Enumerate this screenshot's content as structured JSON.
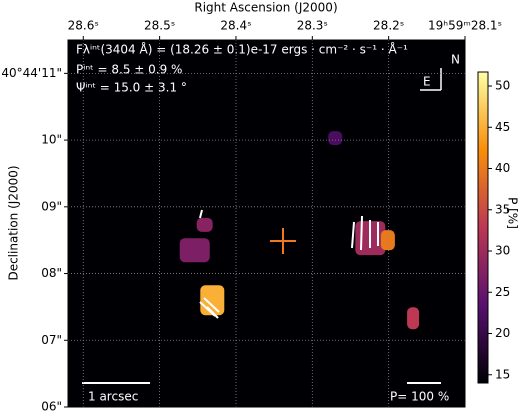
{
  "chart_data": {
    "type": "polarization-map",
    "title_lines": [
      "Fλⁱⁿᵗ(3404 Å) = (18.26 ± 0.1)e-17 ergs · cm⁻² · s⁻¹ · Å⁻¹",
      "Pⁱⁿᵗ = 8.5 ± 0.9 %",
      "Ψⁱⁿᵗ = 15.0 ± 3.1 °"
    ],
    "xlabel": "Right Ascension (J2000)",
    "ylabel": "Declination (J2000)",
    "xlim": [
      28.62,
      28.1
    ],
    "ylim": [
      6,
      11.5
    ],
    "xticks": [
      {
        "value": 28.6,
        "label": "28.6ˢ"
      },
      {
        "value": 28.5,
        "label": "28.5ˢ"
      },
      {
        "value": 28.4,
        "label": "28.4ˢ"
      },
      {
        "value": 28.3,
        "label": "28.3ˢ"
      },
      {
        "value": 28.2,
        "label": "28.2ˢ"
      },
      {
        "value": 28.1,
        "label": "19ʰ59ᵐ28.1ˢ"
      }
    ],
    "yticks": [
      {
        "value": 11,
        "label": "40°44'11\""
      },
      {
        "value": 10,
        "label": "10\""
      },
      {
        "value": 9,
        "label": "09\""
      },
      {
        "value": 8,
        "label": "08\""
      },
      {
        "value": 7,
        "label": "07\""
      },
      {
        "value": 6,
        "label": "06\""
      }
    ],
    "grid": true,
    "colorbar": {
      "label": "P [%]",
      "lim": [
        14,
        51.7
      ],
      "ticks": [
        15,
        20,
        25,
        30,
        35,
        40,
        45,
        50
      ],
      "colormap": "inferno"
    },
    "sources": {
      "x": [
        28.441,
        28.454,
        28.431,
        28.224,
        28.201,
        28.168,
        28.27
      ],
      "y": [
        8.73,
        8.35,
        7.6,
        8.53,
        8.5,
        7.33,
        10.03
      ],
      "values": [
        28,
        27,
        45,
        30,
        40,
        33,
        22
      ]
    },
    "scale_bar": "1 arcsec",
    "vector_scale": "P= 100 %",
    "compass": [
      "N",
      "E"
    ]
  }
}
